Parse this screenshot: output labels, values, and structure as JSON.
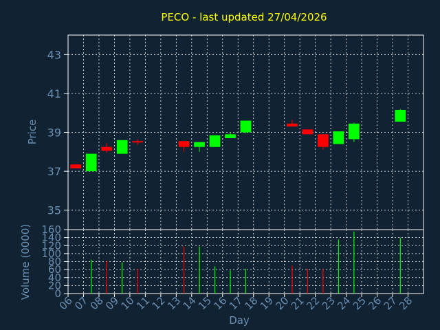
{
  "chart_data": [
    {
      "type": "candlestick",
      "title": "PECO - last updated 27/04/2026",
      "ylabel": "Price",
      "ylim": [
        34,
        44
      ],
      "yticks": [
        35,
        37,
        39,
        41,
        43
      ],
      "grid": true,
      "up_color": "#00ff00",
      "down_color": "#ff0000",
      "candles": [
        {
          "x": "06",
          "open": 37.35,
          "high": 37.35,
          "low": 37.15,
          "close": 37.15
        },
        {
          "x": "07",
          "open": 37.0,
          "high": 37.9,
          "low": 37.0,
          "close": 37.9
        },
        {
          "x": "08",
          "open": 38.25,
          "high": 38.45,
          "low": 37.95,
          "close": 38.05
        },
        {
          "x": "09",
          "open": 37.9,
          "high": 38.6,
          "low": 37.9,
          "close": 38.6
        },
        {
          "x": "10",
          "open": 38.55,
          "high": 38.65,
          "low": 38.35,
          "close": 38.5
        },
        {
          "x": "13",
          "open": 38.55,
          "high": 38.55,
          "low": 38.0,
          "close": 38.25
        },
        {
          "x": "14",
          "open": 38.25,
          "high": 38.5,
          "low": 38.0,
          "close": 38.5
        },
        {
          "x": "15",
          "open": 38.25,
          "high": 38.85,
          "low": 38.25,
          "close": 38.85
        },
        {
          "x": "16",
          "open": 38.7,
          "high": 39.0,
          "low": 38.7,
          "close": 38.9
        },
        {
          "x": "17",
          "open": 39.0,
          "high": 39.6,
          "low": 38.95,
          "close": 39.6
        },
        {
          "x": "20",
          "open": 39.45,
          "high": 39.65,
          "low": 39.3,
          "close": 39.3
        },
        {
          "x": "21",
          "open": 39.15,
          "high": 39.15,
          "low": 38.9,
          "close": 38.9
        },
        {
          "x": "22",
          "open": 38.9,
          "high": 38.9,
          "low": 38.1,
          "close": 38.25
        },
        {
          "x": "23",
          "open": 38.4,
          "high": 39.05,
          "low": 38.4,
          "close": 39.05
        },
        {
          "x": "24",
          "open": 38.65,
          "high": 39.5,
          "low": 38.5,
          "close": 39.45
        },
        {
          "x": "27",
          "open": 39.55,
          "high": 40.2,
          "low": 39.55,
          "close": 40.15
        }
      ]
    },
    {
      "type": "bar",
      "ylabel": "Volume (0000)",
      "xlabel": "Day",
      "ylim": [
        0,
        160
      ],
      "yticks": [
        0,
        20,
        40,
        60,
        80,
        100,
        120,
        140,
        160
      ],
      "categories": [
        "06",
        "07",
        "08",
        "09",
        "10",
        "11",
        "12",
        "13",
        "14",
        "15",
        "16",
        "17",
        "18",
        "19",
        "20",
        "21",
        "22",
        "23",
        "24",
        "25",
        "26",
        "27",
        "28"
      ],
      "grid": true,
      "bars": [
        {
          "x": "07",
          "value": 85,
          "color": "#00ff00"
        },
        {
          "x": "08",
          "value": 82,
          "color": "#ff0000"
        },
        {
          "x": "09",
          "value": 78,
          "color": "#00ff00"
        },
        {
          "x": "10",
          "value": 62,
          "color": "#ff0000"
        },
        {
          "x": "13",
          "value": 118,
          "color": "#ff0000"
        },
        {
          "x": "14",
          "value": 118,
          "color": "#00ff00"
        },
        {
          "x": "15",
          "value": 68,
          "color": "#00ff00"
        },
        {
          "x": "16",
          "value": 58,
          "color": "#00ff00"
        },
        {
          "x": "17",
          "value": 62,
          "color": "#00ff00"
        },
        {
          "x": "20",
          "value": 70,
          "color": "#ff0000"
        },
        {
          "x": "21",
          "value": 62,
          "color": "#ff0000"
        },
        {
          "x": "22",
          "value": 62,
          "color": "#ff0000"
        },
        {
          "x": "23",
          "value": 135,
          "color": "#00ff00"
        },
        {
          "x": "24",
          "value": 155,
          "color": "#00ff00"
        },
        {
          "x": "27",
          "value": 140,
          "color": "#00ff00"
        }
      ]
    }
  ],
  "colors": {
    "background": "#112233",
    "axis": "#ffffff",
    "text": "#6a8fb0",
    "title": "#ffff00",
    "grid": "#ffffff"
  }
}
